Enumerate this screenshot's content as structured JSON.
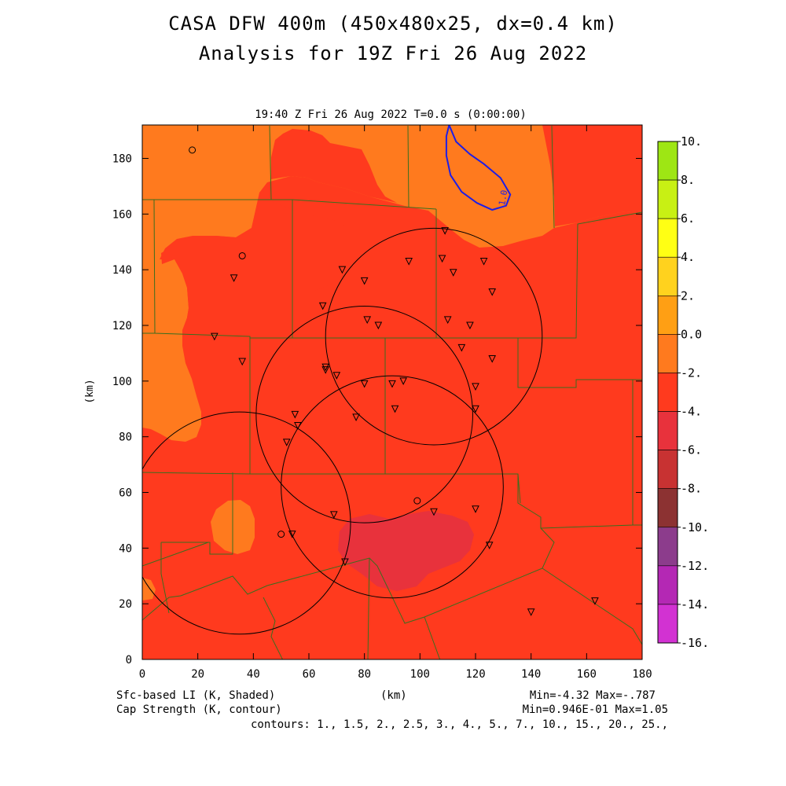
{
  "title_line1": "CASA DFW 400m (450x480x25, dx=0.4 km)",
  "title_line2": "Analysis for 19Z Fri 26 Aug 2022",
  "plot_subtitle": "19:40 Z Fri 26 Aug 2022   T=0.0 s (0:00:00)",
  "footer": {
    "shaded_field": "Sfc-based LI (K, Shaded)",
    "contour_field": "Cap Strength (K, contour)",
    "x_unit": "(km)",
    "shaded_minmax": "Min=-4.32 Max=-.787",
    "contour_minmax": "Min=0.946E-01 Max=1.05",
    "contours": "contours: 1., 1.5, 2., 2.5, 3., 4., 5., 7., 10., 15., 20., 25.,"
  },
  "chart_data": {
    "type": "heatmap",
    "xlabel": "(km)",
    "ylabel": "(km)",
    "xlim": [
      0,
      180
    ],
    "ylim": [
      0,
      192
    ],
    "x_ticks": [
      "0",
      "20",
      "40",
      "60",
      "80",
      "100",
      "120",
      "140",
      "160",
      "180"
    ],
    "y_ticks": [
      "0",
      "20",
      "40",
      "60",
      "80",
      "100",
      "120",
      "140",
      "160",
      "180"
    ],
    "colorbar": {
      "labels": [
        "10.",
        "8.",
        "6.",
        "4.",
        "2.",
        "0.0",
        "-2.",
        "-4.",
        "-6.",
        "-8.",
        "-10.",
        "-12.",
        "-14.",
        "-16."
      ],
      "colors": [
        "#9ee614",
        "#c8f014",
        "#ffff14",
        "#ffd21e",
        "#ff9f14",
        "#ff7a1e",
        "#ff3a1e",
        "#e8323c",
        "#c83232",
        "#8c3232",
        "#8c3c8c",
        "#b428b4",
        "#d232d2"
      ]
    },
    "contour_label": "1.0",
    "contour_line": [
      [
        110.5,
        192
      ],
      [
        113,
        186
      ],
      [
        118,
        181.5
      ],
      [
        123,
        178
      ],
      [
        129,
        173
      ],
      [
        132.5,
        167
      ],
      [
        131,
        163
      ],
      [
        126,
        161.5
      ],
      [
        120.5,
        164
      ],
      [
        115,
        168
      ],
      [
        111,
        174
      ],
      [
        109.5,
        181
      ],
      [
        109.5,
        188
      ],
      [
        110.5,
        192
      ]
    ],
    "radar_rings": [
      {
        "center": [
          35,
          49
        ],
        "radius": 40
      },
      {
        "center": [
          105,
          116
        ],
        "radius": 39
      },
      {
        "center": [
          80,
          88
        ],
        "radius": 39
      },
      {
        "center": [
          90,
          62
        ],
        "radius": 40
      }
    ],
    "stations_triangle": [
      [
        109,
        154
      ],
      [
        96,
        143
      ],
      [
        108,
        144
      ],
      [
        123,
        143
      ],
      [
        72,
        140
      ],
      [
        112,
        139
      ],
      [
        33,
        137
      ],
      [
        80,
        136
      ],
      [
        126,
        132
      ],
      [
        65,
        127
      ],
      [
        81,
        122
      ],
      [
        85,
        120
      ],
      [
        110,
        122
      ],
      [
        118,
        120
      ],
      [
        26,
        116
      ],
      [
        115,
        112
      ],
      [
        126,
        108
      ],
      [
        36,
        107
      ],
      [
        66,
        105
      ],
      [
        66,
        104
      ],
      [
        70,
        102
      ],
      [
        80,
        99
      ],
      [
        90,
        99
      ],
      [
        94,
        100
      ],
      [
        120,
        98
      ],
      [
        77,
        87
      ],
      [
        55,
        88
      ],
      [
        56,
        84
      ],
      [
        52,
        78
      ],
      [
        69,
        52
      ],
      [
        105,
        53
      ],
      [
        120,
        54
      ],
      [
        54,
        45
      ],
      [
        73,
        35
      ],
      [
        125,
        41
      ],
      [
        140,
        17
      ],
      [
        163,
        21
      ],
      [
        91,
        90
      ],
      [
        120,
        90
      ]
    ],
    "stations_circle": [
      [
        18,
        183
      ],
      [
        36,
        145
      ],
      [
        99,
        57
      ],
      [
        50,
        45
      ]
    ]
  }
}
